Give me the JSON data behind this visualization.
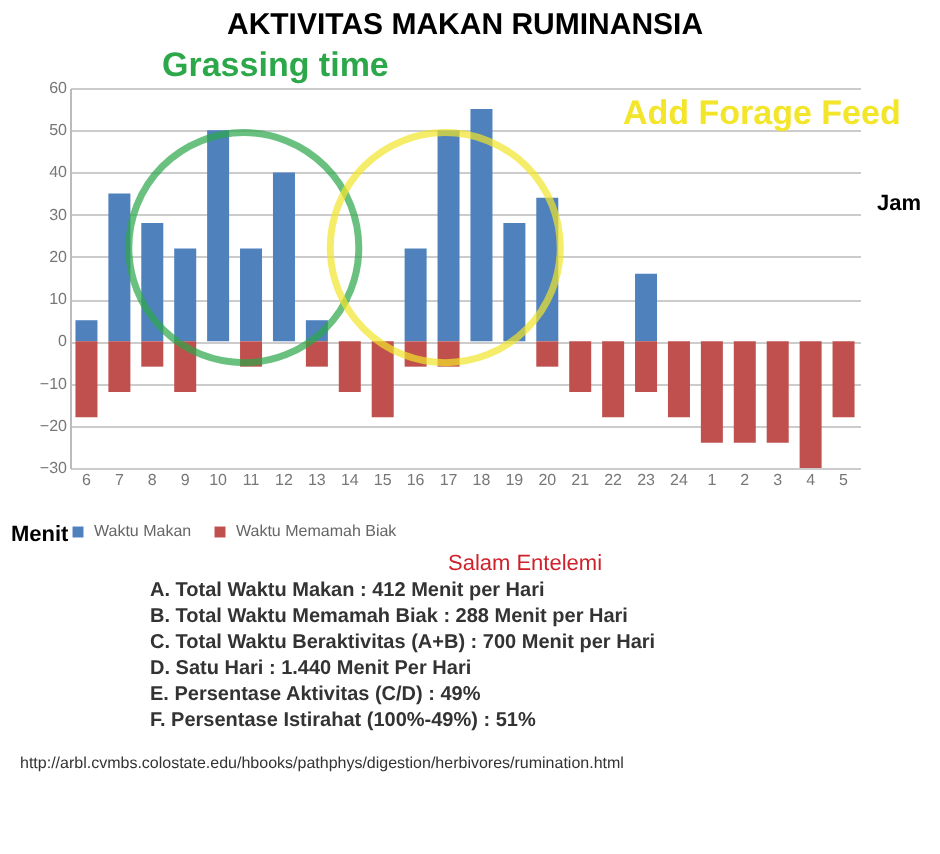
{
  "chart_data": {
    "type": "bar",
    "title": "AKTIVITAS MAKAN RUMINANSIA",
    "xlabel": "Jam",
    "ylabel": "Menit",
    "categories": [
      "6",
      "7",
      "8",
      "9",
      "10",
      "11",
      "12",
      "13",
      "14",
      "15",
      "16",
      "17",
      "18",
      "19",
      "20",
      "21",
      "22",
      "23",
      "24",
      "1",
      "2",
      "3",
      "4",
      "5"
    ],
    "series": [
      {
        "name": "Waktu Makan",
        "color": "#4f81bd",
        "values": [
          5,
          35,
          28,
          22,
          50,
          22,
          40,
          5,
          0,
          0,
          22,
          50,
          55,
          28,
          34,
          0,
          0,
          16,
          0,
          0,
          0,
          0,
          0,
          0
        ]
      },
      {
        "name": "Waktu Memamah Biak",
        "color": "#c0504d",
        "values": [
          -18,
          -12,
          -6,
          -12,
          0,
          -6,
          0,
          -6,
          -12,
          -18,
          -6,
          -6,
          0,
          0,
          -6,
          -12,
          -18,
          -12,
          -18,
          -24,
          -24,
          -24,
          -30,
          -18
        ]
      }
    ],
    "ylim": [
      -30,
      60
    ],
    "yticks": [
      -30,
      -20,
      -10,
      0,
      10,
      20,
      30,
      40,
      50,
      60
    ],
    "grid": "y",
    "legend": "bottom",
    "annotations": [
      "Grassing time",
      "Add Forage Feed",
      "Salam Entelemi",
      "A. Total Waktu Makan : 412 Menit per Hari",
      "B. Total Waktu Memamah Biak : 288 Menit per Hari",
      "C. Total Waktu Beraktivitas (A+B) : 700 Menit per Hari",
      "D. Satu Hari :  1.440 Menit Per Hari",
      "E. Persentase Aktivitas (C/D) : 49%",
      "F. Persentase Istirahat (100%-49%) : 51%",
      "http://arbl.cvmbs.colostate.edu/hbooks/pathphys/digestion/herbivores/rumination.html"
    ]
  }
}
